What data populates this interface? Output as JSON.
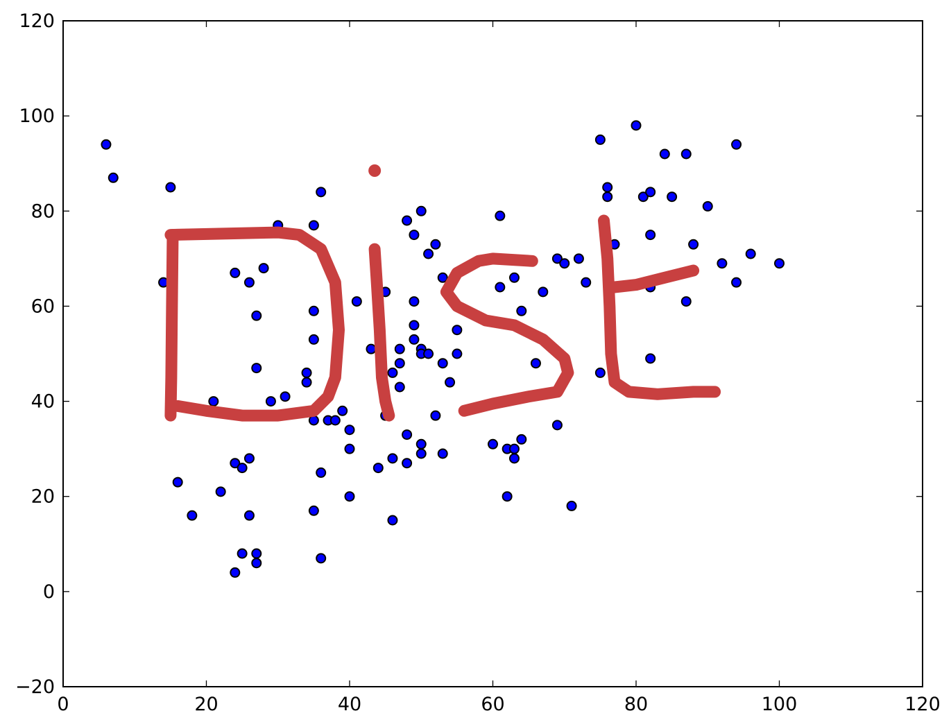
{
  "chart_data": {
    "type": "scatter",
    "title": "",
    "xlabel": "",
    "ylabel": "",
    "xlim": [
      0,
      120
    ],
    "ylim": [
      -20,
      120
    ],
    "x_ticks": [
      "0",
      "20",
      "40",
      "60",
      "80",
      "100",
      "120"
    ],
    "y_ticks": [
      "−20",
      "0",
      "20",
      "40",
      "60",
      "80",
      "100",
      "120"
    ],
    "x_tick_values": [
      0,
      20,
      40,
      60,
      80,
      100,
      120
    ],
    "y_tick_values": [
      -20,
      0,
      20,
      40,
      60,
      80,
      100,
      120
    ],
    "grid": false,
    "legend": "none",
    "marker_color": "#0000ff",
    "marker_edge_color": "#000000",
    "series": [
      {
        "points": [
          [
            6,
            94
          ],
          [
            7,
            87
          ],
          [
            14,
            65
          ],
          [
            15,
            85
          ],
          [
            16,
            23
          ],
          [
            18,
            16
          ],
          [
            21,
            40
          ],
          [
            22,
            21
          ],
          [
            24,
            67
          ],
          [
            24,
            27
          ],
          [
            24,
            4
          ],
          [
            25,
            26
          ],
          [
            25,
            8
          ],
          [
            26,
            65
          ],
          [
            26,
            28
          ],
          [
            26,
            16
          ],
          [
            27,
            58
          ],
          [
            27,
            47
          ],
          [
            27,
            8
          ],
          [
            27,
            6
          ],
          [
            28,
            68
          ],
          [
            29,
            40
          ],
          [
            30,
            77
          ],
          [
            31,
            41
          ],
          [
            34,
            46
          ],
          [
            34,
            44
          ],
          [
            35,
            77
          ],
          [
            35,
            59
          ],
          [
            35,
            53
          ],
          [
            35,
            36
          ],
          [
            35,
            17
          ],
          [
            36,
            84
          ],
          [
            36,
            25
          ],
          [
            36,
            7
          ],
          [
            37,
            36
          ],
          [
            38,
            36
          ],
          [
            39,
            38
          ],
          [
            40,
            34
          ],
          [
            40,
            30
          ],
          [
            40,
            20
          ],
          [
            41,
            61
          ],
          [
            43,
            51
          ],
          [
            44,
            26
          ],
          [
            45,
            63
          ],
          [
            45,
            37
          ],
          [
            46,
            46
          ],
          [
            46,
            28
          ],
          [
            46,
            15
          ],
          [
            47,
            51
          ],
          [
            47,
            48
          ],
          [
            47,
            43
          ],
          [
            48,
            78
          ],
          [
            48,
            33
          ],
          [
            48,
            27
          ],
          [
            49,
            75
          ],
          [
            49,
            61
          ],
          [
            49,
            56
          ],
          [
            49,
            53
          ],
          [
            50,
            80
          ],
          [
            50,
            51
          ],
          [
            50,
            50
          ],
          [
            50,
            31
          ],
          [
            50,
            29
          ],
          [
            51,
            71
          ],
          [
            51,
            50
          ],
          [
            52,
            73
          ],
          [
            52,
            37
          ],
          [
            53,
            66
          ],
          [
            53,
            48
          ],
          [
            53,
            29
          ],
          [
            54,
            44
          ],
          [
            55,
            55
          ],
          [
            55,
            50
          ],
          [
            60,
            70
          ],
          [
            60,
            31
          ],
          [
            61,
            79
          ],
          [
            61,
            64
          ],
          [
            62,
            30
          ],
          [
            62,
            20
          ],
          [
            63,
            66
          ],
          [
            63,
            30
          ],
          [
            63,
            28
          ],
          [
            64,
            59
          ],
          [
            64,
            32
          ],
          [
            66,
            48
          ],
          [
            67,
            63
          ],
          [
            69,
            70
          ],
          [
            69,
            35
          ],
          [
            70,
            69
          ],
          [
            71,
            18
          ],
          [
            72,
            70
          ],
          [
            73,
            65
          ],
          [
            75,
            95
          ],
          [
            75,
            46
          ],
          [
            76,
            85
          ],
          [
            76,
            83
          ],
          [
            77,
            73
          ],
          [
            80,
            98
          ],
          [
            81,
            83
          ],
          [
            82,
            84
          ],
          [
            82,
            75
          ],
          [
            82,
            64
          ],
          [
            82,
            49
          ],
          [
            84,
            92
          ],
          [
            85,
            83
          ],
          [
            87,
            92
          ],
          [
            87,
            61
          ],
          [
            88,
            73
          ],
          [
            90,
            81
          ],
          [
            92,
            69
          ],
          [
            94,
            94
          ],
          [
            94,
            65
          ],
          [
            96,
            71
          ],
          [
            100,
            69
          ]
        ]
      }
    ],
    "overlay": {
      "type": "handwritten-annotation",
      "text": "Dist",
      "color": "#c84040",
      "strokes": [
        [
          [
            15,
            75
          ],
          [
            30,
            75.5
          ],
          [
            33,
            75
          ],
          [
            36,
            72
          ],
          [
            38,
            65
          ],
          [
            38.5,
            55
          ],
          [
            38,
            45
          ],
          [
            37,
            41
          ],
          [
            35,
            38
          ],
          [
            30,
            37
          ],
          [
            25,
            37
          ],
          [
            20,
            38
          ],
          [
            16,
            39
          ]
        ],
        [
          [
            15.3,
            75
          ],
          [
            15.2,
            60
          ],
          [
            15.1,
            45
          ],
          [
            15,
            37
          ]
        ],
        [
          [
            43.5,
            72
          ],
          [
            43.8,
            65
          ],
          [
            44.2,
            55
          ],
          [
            44.5,
            45
          ],
          [
            45,
            40
          ],
          [
            45.5,
            37
          ]
        ],
        [
          [
            65.5,
            69.5
          ],
          [
            60,
            70
          ],
          [
            58,
            69.5
          ],
          [
            55,
            67
          ],
          [
            53.5,
            63
          ],
          [
            55,
            60
          ],
          [
            59,
            57
          ],
          [
            63,
            56
          ],
          [
            67,
            53
          ],
          [
            70,
            49
          ],
          [
            70.5,
            46
          ],
          [
            69,
            42
          ],
          [
            65,
            41
          ],
          [
            60,
            39.5
          ],
          [
            56,
            38
          ]
        ],
        [
          [
            75.5,
            78
          ],
          [
            76,
            70
          ],
          [
            76.3,
            60
          ],
          [
            76.5,
            50
          ],
          [
            77,
            44
          ],
          [
            79,
            42
          ],
          [
            83,
            41.5
          ],
          [
            88,
            42
          ],
          [
            91,
            42
          ]
        ],
        [
          [
            77,
            64
          ],
          [
            80,
            64.5
          ],
          [
            84,
            66
          ],
          [
            88,
            67.5
          ]
        ]
      ],
      "dots": [
        [
          43.5,
          88.5
        ]
      ]
    }
  }
}
